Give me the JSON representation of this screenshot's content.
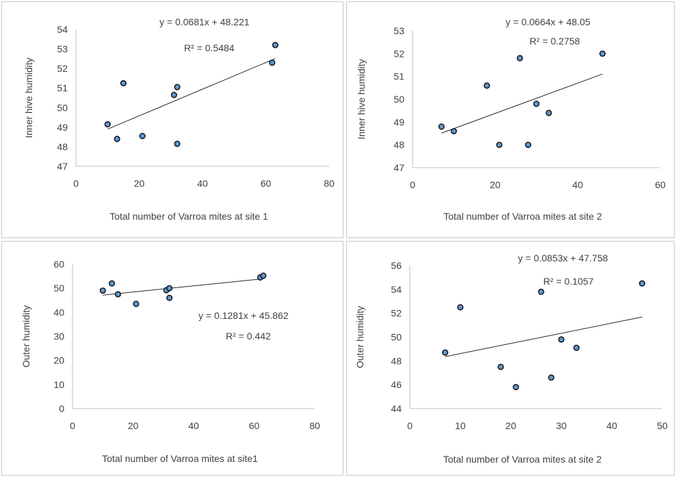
{
  "chart_data": [
    {
      "type": "scatter",
      "xlabel": "Total number of Varroa mites at site 1",
      "ylabel": "Inner hive humidity",
      "xlim": [
        0,
        80
      ],
      "xticks": [
        0,
        20,
        40,
        60,
        80
      ],
      "ylim": [
        47,
        54
      ],
      "yticks": [
        47,
        48,
        49,
        50,
        51,
        52,
        53,
        54
      ],
      "points": [
        {
          "x": 10,
          "y": 49.15
        },
        {
          "x": 13,
          "y": 48.4
        },
        {
          "x": 15,
          "y": 51.25
        },
        {
          "x": 21,
          "y": 48.55
        },
        {
          "x": 31,
          "y": 50.65
        },
        {
          "x": 32,
          "y": 51.05
        },
        {
          "x": 32,
          "y": 48.15
        },
        {
          "x": 62,
          "y": 52.3
        },
        {
          "x": 63,
          "y": 53.2
        }
      ],
      "trendline": {
        "slope": 0.0681,
        "intercept": 48.221,
        "x_range": [
          10,
          63
        ]
      },
      "equation": "y = 0.0681x + 48.221",
      "r2": "R² = 0.5484",
      "grid": false
    },
    {
      "type": "scatter",
      "xlabel": "Total number of Varroa mites at site 2",
      "ylabel": "Inner hive humidity",
      "xlim": [
        0,
        60
      ],
      "xticks": [
        0,
        20,
        40,
        60
      ],
      "ylim": [
        47,
        53
      ],
      "yticks": [
        47,
        48,
        49,
        50,
        51,
        52,
        53
      ],
      "points": [
        {
          "x": 7,
          "y": 48.8
        },
        {
          "x": 10,
          "y": 48.6
        },
        {
          "x": 18,
          "y": 50.6
        },
        {
          "x": 21,
          "y": 48.0
        },
        {
          "x": 26,
          "y": 51.8
        },
        {
          "x": 28,
          "y": 48.0
        },
        {
          "x": 30,
          "y": 49.8
        },
        {
          "x": 33,
          "y": 49.4
        },
        {
          "x": 46,
          "y": 52.0
        }
      ],
      "trendline": {
        "slope": 0.0664,
        "intercept": 48.05,
        "x_range": [
          7,
          46
        ]
      },
      "equation": "y = 0.0664x + 48.05",
      "r2": "R² = 0.2758",
      "grid": false
    },
    {
      "type": "scatter",
      "xlabel": "Total number of Varroa mites at site1",
      "ylabel": "Outer humidity",
      "xlim": [
        0,
        80
      ],
      "xticks": [
        0,
        20,
        40,
        60,
        80
      ],
      "ylim": [
        0,
        60
      ],
      "yticks": [
        0,
        10,
        20,
        30,
        40,
        50,
        60
      ],
      "points": [
        {
          "x": 10,
          "y": 49
        },
        {
          "x": 13,
          "y": 52
        },
        {
          "x": 15,
          "y": 47.5
        },
        {
          "x": 21,
          "y": 43.5
        },
        {
          "x": 31,
          "y": 49.2
        },
        {
          "x": 32,
          "y": 50
        },
        {
          "x": 32,
          "y": 46
        },
        {
          "x": 62,
          "y": 54.5
        },
        {
          "x": 63,
          "y": 55.2
        }
      ],
      "trendline": {
        "slope": 0.1281,
        "intercept": 45.862,
        "x_range": [
          10,
          63
        ]
      },
      "equation": "y = 0.1281x + 45.862",
      "r2": "R² = 0.442",
      "grid": false
    },
    {
      "type": "scatter",
      "xlabel": "Total number of Varroa mites at site 2",
      "ylabel": "Outer humidity",
      "xlim": [
        0,
        50
      ],
      "xticks": [
        0,
        10,
        20,
        30,
        40,
        50
      ],
      "ylim": [
        44,
        56
      ],
      "yticks": [
        44,
        46,
        48,
        50,
        52,
        54,
        56
      ],
      "points": [
        {
          "x": 7,
          "y": 48.7
        },
        {
          "x": 10,
          "y": 52.5
        },
        {
          "x": 18,
          "y": 47.5
        },
        {
          "x": 21,
          "y": 45.8
        },
        {
          "x": 26,
          "y": 53.8
        },
        {
          "x": 28,
          "y": 46.6
        },
        {
          "x": 30,
          "y": 49.8
        },
        {
          "x": 33,
          "y": 49.1
        },
        {
          "x": 46,
          "y": 54.5
        }
      ],
      "trendline": {
        "slope": 0.0853,
        "intercept": 47.758,
        "x_range": [
          7,
          46
        ]
      },
      "equation": "y = 0.0853x + 47.758",
      "r2": "R² = 0.1057",
      "grid": false
    }
  ],
  "colors": {
    "marker_fill": "#5B9BD5",
    "marker_stroke": "#1a1a1a",
    "trendline": "#262626",
    "axis": "#bfbfbf",
    "text": "#404040"
  }
}
